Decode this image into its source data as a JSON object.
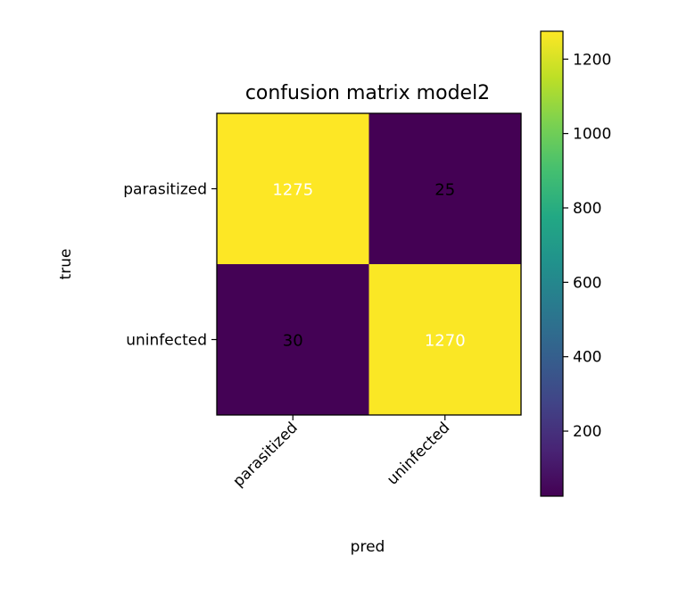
{
  "chart_data": {
    "type": "heatmap",
    "title": "confusion matrix model2",
    "xlabel": "pred",
    "ylabel": "true",
    "x_categories": [
      "parasitized",
      "uninfected"
    ],
    "y_categories": [
      "parasitized",
      "uninfected"
    ],
    "values": [
      [
        1275,
        25
      ],
      [
        30,
        1270
      ]
    ],
    "colorbar": {
      "colormap": "viridis",
      "range": [
        25,
        1275
      ],
      "ticks": [
        200,
        400,
        600,
        800,
        1000,
        1200
      ],
      "tick_labels": [
        "200",
        "400",
        "600",
        "800",
        "1000",
        "1200"
      ]
    },
    "annotation_colors": {
      "high": "#ffffff",
      "low": "#000000"
    },
    "grid": false,
    "legend": "colorbar-right"
  }
}
